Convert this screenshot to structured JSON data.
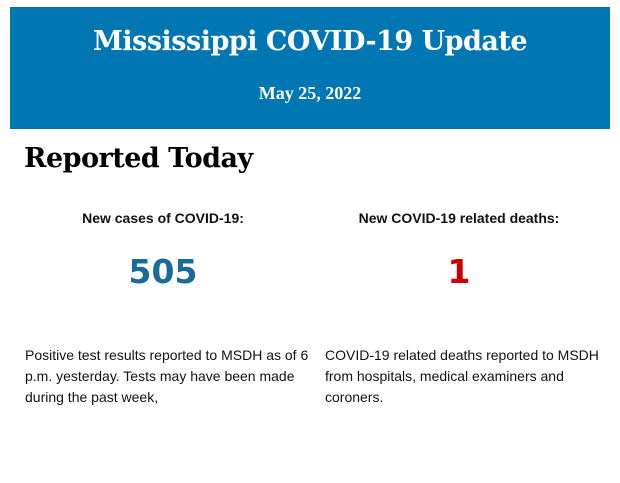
{
  "header": {
    "title": "Mississippi COVID-19 Update",
    "date": "May 25, 2022",
    "background": "#0076b2"
  },
  "section_title": "Reported Today",
  "cases": {
    "label": "New cases of COVID-19:",
    "value": "505",
    "color": "#1a6a9a",
    "description": "Positive test results reported to MSDH as of 6 p.m. yesterday. Tests may have been made during the past week,"
  },
  "deaths": {
    "label": "New COVID-19 related deaths:",
    "value": "1",
    "color": "#cc0000",
    "description": "COVID-19 related deaths reported to MSDH from hospitals, medical examiners and coroners."
  }
}
